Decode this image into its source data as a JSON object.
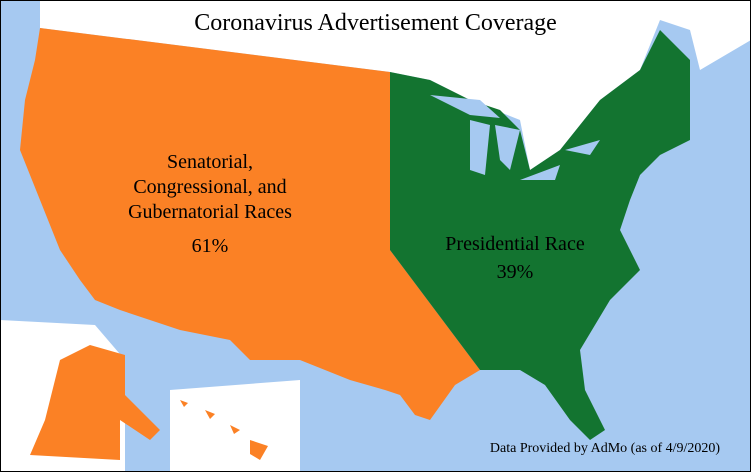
{
  "chart_data": {
    "type": "map",
    "title": "Coronavirus Advertisement Coverage",
    "categories": [
      "Senatorial, Congressional, and Gubernatorial Races",
      "Presidential Race"
    ],
    "values": [
      61,
      39
    ],
    "value_labels": [
      "61%",
      "39%"
    ],
    "colors": [
      "#fb8125",
      "#137430"
    ],
    "source": "Data Provided by AdMo (as of 4/9/2020)"
  }
}
